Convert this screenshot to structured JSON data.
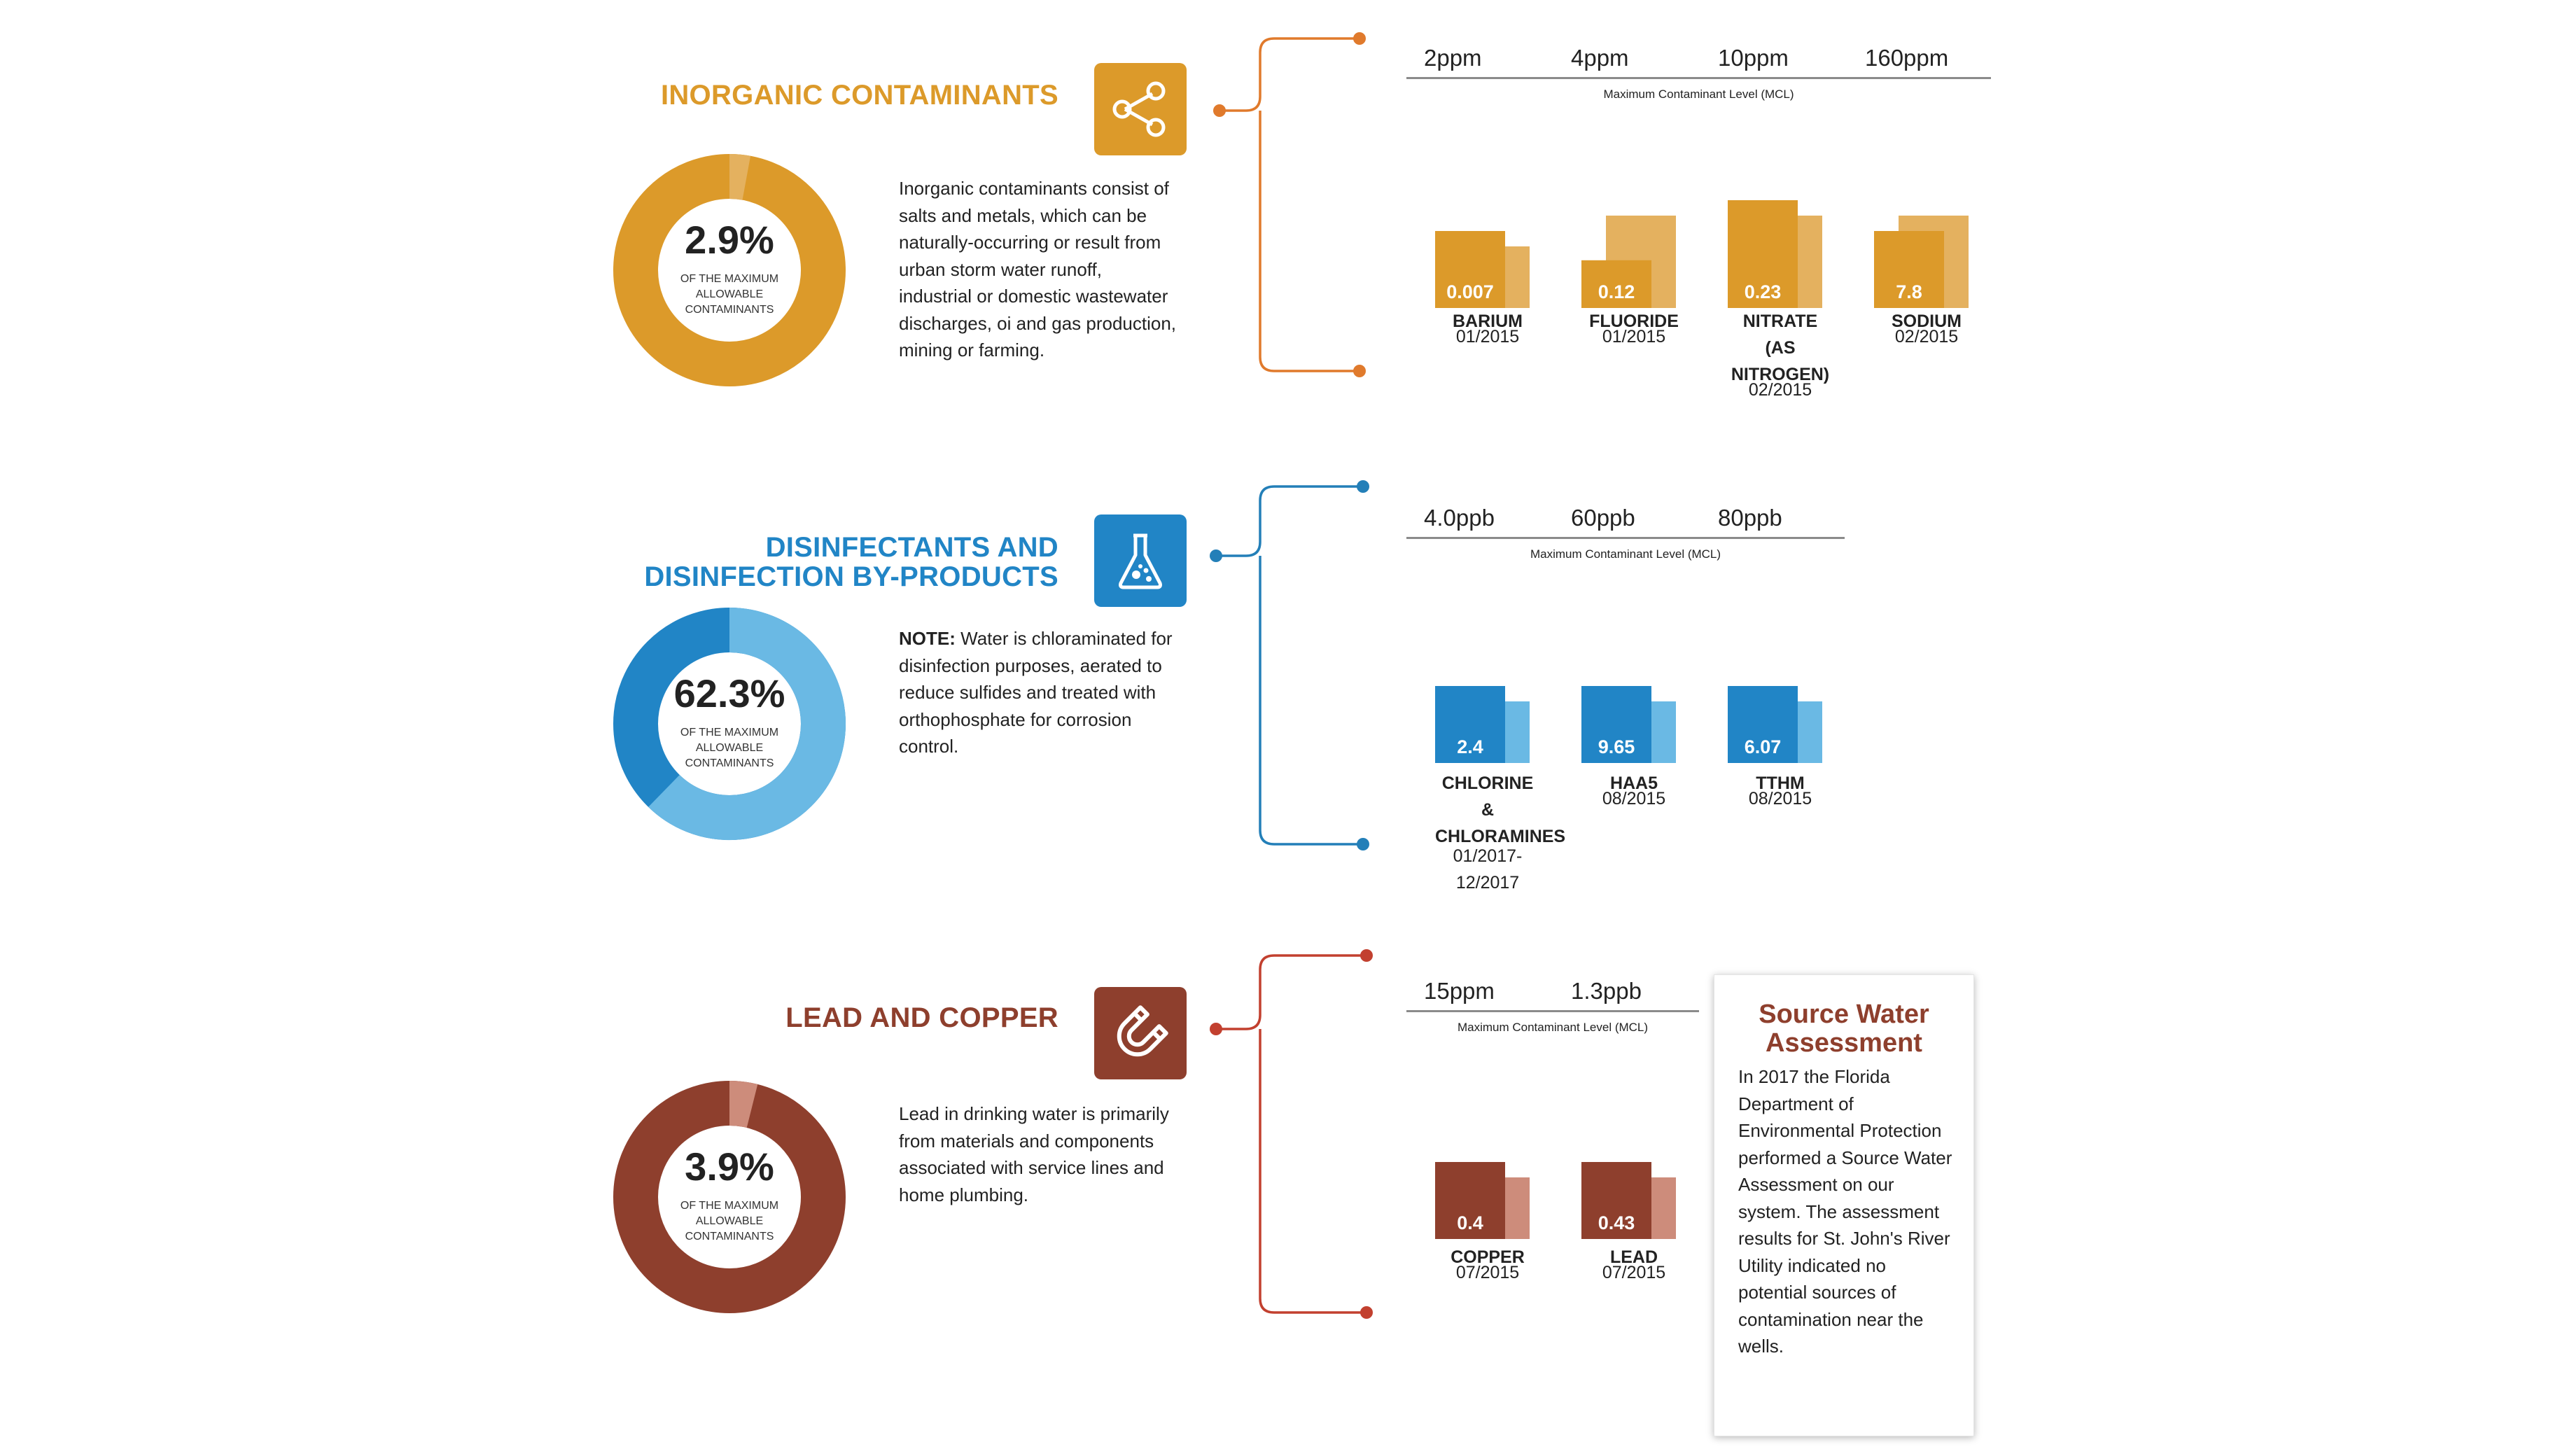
{
  "colors": {
    "inorganic": {
      "main": "#dc9a2a",
      "light": "#e4b15f"
    },
    "disinfect": {
      "main": "#2185c6",
      "light": "#6ab9e4"
    },
    "lead": {
      "main": "#8e3f2d",
      "light": "#cd8c7b"
    },
    "bracket_inorganic": "#e07a2c",
    "bracket_disinfect": "#237fb8",
    "bracket_lead": "#c2402f"
  },
  "mcl_caption": "Maximum Contaminant Level (MCL)",
  "sections": [
    {
      "key": "inorganic",
      "title_lines": [
        "INORGANIC CONTAMINANTS"
      ],
      "icon": "share-nodes-icon",
      "donut": {
        "percent": "2.9%",
        "fraction": 0.029,
        "caption": "OF THE MAXIMUM ALLOWABLE CONTAMINANTS"
      },
      "description_lead": "",
      "description": "Inorganic contaminants consist of salts and metals, which can be naturally-occurring or result from urban storm water runoff, industrial or domestic wastewater discharges, oi and gas production, mining or farming.",
      "mcl_ticks": [
        "2ppm",
        "4ppm",
        "10ppm",
        "160ppm"
      ]
    },
    {
      "key": "disinfect",
      "title_lines": [
        "DISINFECTANTS AND",
        "DISINFECTION BY-PRODUCTS"
      ],
      "icon": "flask-icon",
      "donut": {
        "percent": "62.3%",
        "fraction": 0.623,
        "caption": "OF THE MAXIMUM ALLOWABLE CONTAMINANTS"
      },
      "description_lead": "NOTE:",
      "description": " Water is chloraminated for disinfection purposes, aerated to reduce sulfides and treated with orthophosphate for corrosion control.",
      "mcl_ticks": [
        "4.0ppb",
        "60ppb",
        "80ppb"
      ]
    },
    {
      "key": "lead",
      "title_lines": [
        "LEAD AND COPPER"
      ],
      "icon": "magnet-icon",
      "donut": {
        "percent": "3.9%",
        "fraction": 0.039,
        "caption": "OF THE MAXIMUM ALLOWABLE CONTAMINANTS"
      },
      "description_lead": "",
      "description": "Lead in drinking water is primarily from materials and components associated with service lines and home plumbing.",
      "mcl_ticks": [
        "15ppm",
        "1.3ppb"
      ]
    }
  ],
  "chart_data": [
    {
      "type": "bar",
      "title": "INORGANIC CONTAMINANTS",
      "categories": [
        "BARIUM",
        "FLUORIDE",
        "NITRATE (AS NITROGEN)",
        "SODIUM"
      ],
      "category_lines": [
        [
          "BARIUM"
        ],
        [
          "FLUORIDE"
        ],
        [
          "NITRATE",
          "(AS",
          "NITROGEN)"
        ],
        [
          "SODIUM"
        ]
      ],
      "dates": [
        "01/2015",
        "01/2015",
        "02/2015",
        "02/2015"
      ],
      "date_lines": [
        [
          "01/2015"
        ],
        [
          "01/2015"
        ],
        [
          "02/2015"
        ],
        [
          "02/2015"
        ]
      ],
      "values": [
        0.007,
        0.12,
        0.23,
        7.8
      ],
      "value_labels": [
        "0.007",
        "0.12",
        "0.23",
        "7.8"
      ],
      "mcl_labels": [
        "2ppm",
        "4ppm",
        "10ppm",
        "160ppm"
      ],
      "detected_bar_heights_rel": [
        1.0,
        0.62,
        1.4,
        1.0
      ],
      "mcl_bar_heights_rel": [
        0.8,
        1.2,
        1.2,
        1.2
      ]
    },
    {
      "type": "bar",
      "title": "DISINFECTANTS AND DISINFECTION BY-PRODUCTS",
      "categories": [
        "CHLORINE & CHLORAMINES",
        "HAA5",
        "TTHM"
      ],
      "category_lines": [
        [
          "CHLORINE",
          "&",
          "CHLORAMINES"
        ],
        [
          "HAA5"
        ],
        [
          "TTHM"
        ]
      ],
      "dates": [
        "01/2017-12/2017",
        "08/2015",
        "08/2015"
      ],
      "date_lines": [
        [
          "01/2017-",
          "12/2017"
        ],
        [
          "08/2015"
        ],
        [
          "08/2015"
        ]
      ],
      "values": [
        2.4,
        9.65,
        6.07
      ],
      "value_labels": [
        "2.4",
        "9.65",
        "6.07"
      ],
      "mcl_labels": [
        "4.0ppb",
        "60ppb",
        "80ppb"
      ],
      "detected_bar_heights_rel": [
        1.0,
        1.0,
        1.0
      ],
      "mcl_bar_heights_rel": [
        0.8,
        0.8,
        0.8
      ]
    },
    {
      "type": "bar",
      "title": "LEAD AND COPPER",
      "categories": [
        "COPPER",
        "LEAD"
      ],
      "category_lines": [
        [
          "COPPER"
        ],
        [
          "LEAD"
        ]
      ],
      "dates": [
        "07/2015",
        "07/2015"
      ],
      "date_lines": [
        [
          "07/2015"
        ],
        [
          "07/2015"
        ]
      ],
      "values": [
        0.4,
        0.43
      ],
      "value_labels": [
        "0.4",
        "0.43"
      ],
      "mcl_labels": [
        "15ppm",
        "1.3ppb"
      ],
      "detected_bar_heights_rel": [
        1.0,
        1.0
      ],
      "mcl_bar_heights_rel": [
        0.8,
        0.8
      ]
    }
  ],
  "card": {
    "title_lines": [
      "Source Water",
      "Assessment"
    ],
    "body": "In 2017 the Florida Department of Environmental Protection performed a Source Water Assessment on our system. The assessment results for St. John's River Utility indicated no potential sources of contamination near the wells."
  }
}
